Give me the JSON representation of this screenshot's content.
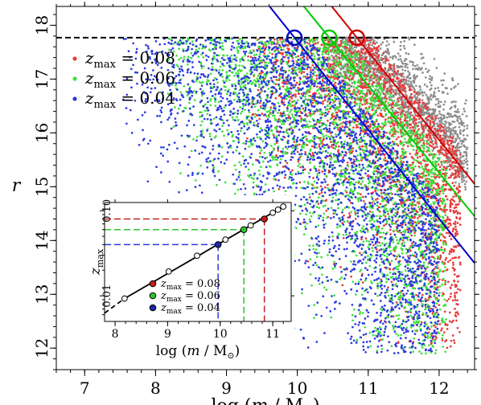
{
  "chart_data": [
    {
      "type": "scatter",
      "xlabel_parts": {
        "pre": "log (",
        "var": "m",
        "mid": " / M",
        "sub": "⊙",
        "post": ")"
      },
      "ylabel": "r",
      "xlim": [
        6.6,
        12.5
      ],
      "ylim": [
        11.6,
        18.35
      ],
      "xticks": [
        "7",
        "8",
        "9",
        "10",
        "11",
        "12"
      ],
      "yticks": [
        "12",
        "13",
        "14",
        "15",
        "16",
        "17",
        "18"
      ],
      "magnitude_limit": {
        "r": 17.77,
        "style": "dashed",
        "color": "#000000"
      },
      "legend": {
        "placement": "top-left",
        "var": "z",
        "sub": "max",
        "entries": [
          {
            "value": "= 0.08",
            "color": "#e83b3b"
          },
          {
            "value": "= 0.06",
            "color": "#3fe03f"
          },
          {
            "value": "= 0.04",
            "color": "#2a3be0"
          }
        ]
      },
      "series": [
        {
          "zmax": 0.1,
          "color": "#8c8c8c",
          "x_range": [
            10.4,
            12.4
          ],
          "r_range": [
            14.9,
            17.77
          ]
        },
        {
          "zmax": 0.08,
          "color": "#e83b3b",
          "x_range": [
            9.2,
            12.3
          ],
          "r_range": [
            12.0,
            17.77
          ]
        },
        {
          "zmax": 0.06,
          "color": "#3fe03f",
          "x_range": [
            8.1,
            12.1
          ],
          "r_range": [
            11.9,
            17.77
          ]
        },
        {
          "zmax": 0.04,
          "color": "#2a3be0",
          "x_range": [
            7.5,
            12.0
          ],
          "r_range": [
            11.9,
            17.77
          ]
        }
      ],
      "completeness_lines": [
        {
          "zmax": 0.04,
          "color": "#0000cc",
          "x_at_limit": 9.96,
          "x_at_bottom": 12.5,
          "r_at_bottom": 13.58
        },
        {
          "zmax": 0.06,
          "color": "#00cc00",
          "x_at_limit": 10.45,
          "x_at_bottom": 12.5,
          "r_at_bottom": 14.45
        },
        {
          "zmax": 0.08,
          "color": "#cc0000",
          "x_at_limit": 10.84,
          "x_at_bottom": 12.5,
          "r_at_bottom": 15.05
        }
      ]
    },
    {
      "type": "line",
      "xlabel_parts": {
        "pre": "log (",
        "var": "m",
        "mid": " / M",
        "sub": "⊙",
        "post": ")"
      },
      "ylabel_parts": {
        "var": "z",
        "sub": "max"
      },
      "xlim": [
        7.8,
        11.35
      ],
      "ylim": [
        0.005,
        0.125
      ],
      "yscale": "log",
      "xticks": [
        "8",
        "9",
        "10",
        "11"
      ],
      "yticks": [
        {
          "value": 0.01,
          "label": "0.01"
        },
        {
          "value": 0.1,
          "label": "0.10"
        }
      ],
      "x": [
        8.18,
        9.02,
        9.56,
        10.1,
        10.58,
        11.0,
        11.1,
        11.2
      ],
      "zmax": [
        0.0093,
        0.0193,
        0.0296,
        0.0458,
        0.0672,
        0.0948,
        0.103,
        0.112
      ],
      "highlights": [
        {
          "x": 9.96,
          "zmax": 0.04,
          "color": "#1b2aa0",
          "line_color": "#2a3be0"
        },
        {
          "x": 10.45,
          "zmax": 0.06,
          "color": "#30c030",
          "line_color": "#30c030"
        },
        {
          "x": 10.84,
          "zmax": 0.08,
          "color": "#c02020",
          "line_color": "#c02020"
        }
      ],
      "legend": {
        "placement": "bottom-left",
        "var": "z",
        "sub": "max",
        "entries": [
          {
            "value": "= 0.08",
            "color": "#c02020"
          },
          {
            "value": "= 0.06",
            "color": "#30c030"
          },
          {
            "value": "= 0.04",
            "color": "#1b2aa0"
          }
        ]
      }
    }
  ]
}
